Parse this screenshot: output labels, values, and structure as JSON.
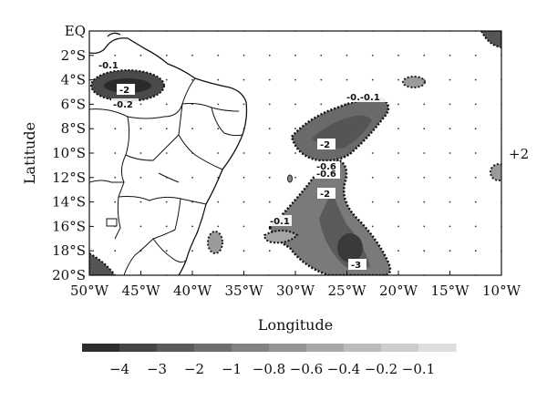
{
  "map": {
    "x_axis_label": "Longitude",
    "y_axis_label": "Latitude",
    "lon_ticks": [
      "50°W",
      "45°W",
      "40°W",
      "35°W",
      "30°W",
      "25°W",
      "20°W",
      "15°W",
      "10°W"
    ],
    "lat_ticks": [
      "EQ",
      "2°S",
      "4°S",
      "6°S",
      "8°S",
      "10°S",
      "12°S",
      "14°S",
      "16°S",
      "18°S",
      "20°S"
    ],
    "side_annotation": "+2",
    "contour_labels": [
      "-0.1",
      "-2",
      "-0.2",
      "-0.-0.1",
      "-2",
      "-0.6",
      "-0.6",
      "-2",
      "-0.1",
      "-3"
    ],
    "colorbar": {
      "labels": [
        "−4",
        "−3",
        "−2",
        "−1",
        "−0.8",
        "−0.6",
        "−0.4",
        "−0.2",
        "−0.1"
      ],
      "colors": [
        "#2e2e2e",
        "#454545",
        "#5a5a5a",
        "#6e6e6e",
        "#828282",
        "#959595",
        "#a8a8a8",
        "#bbbbbb",
        "#cdcdcd",
        "#dedede"
      ]
    }
  }
}
